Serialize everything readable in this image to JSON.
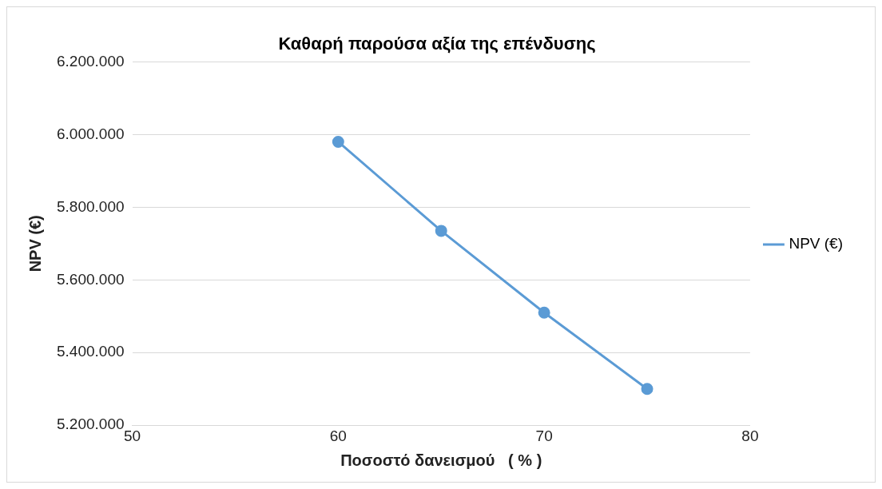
{
  "chart_data": {
    "type": "line",
    "title": "Καθαρή παρούσα αξία της επένδυσης",
    "xlabel": "Ποσοστό δανεισμού   ( % )",
    "ylabel": "NPV (€)",
    "x": [
      60,
      65,
      70,
      75
    ],
    "series": [
      {
        "name": "NPV (€)",
        "color": "#5b9bd5",
        "values": [
          5980000,
          5735000,
          5510000,
          5300000
        ]
      }
    ],
    "xlim": [
      50,
      80
    ],
    "xticks": [
      50,
      60,
      70,
      80
    ],
    "ylim": [
      5200000,
      6200000
    ],
    "yticks": [
      {
        "value": 5200000,
        "label": "5.200.000"
      },
      {
        "value": 5400000,
        "label": "5.400.000"
      },
      {
        "value": 5600000,
        "label": "5.600.000"
      },
      {
        "value": 5800000,
        "label": "5.800.000"
      },
      {
        "value": 6000000,
        "label": "6.000.000"
      },
      {
        "value": 6200000,
        "label": "6.200.000"
      }
    ],
    "grid": "y",
    "legend": "right",
    "marker": "circle",
    "line_style": "solid"
  }
}
